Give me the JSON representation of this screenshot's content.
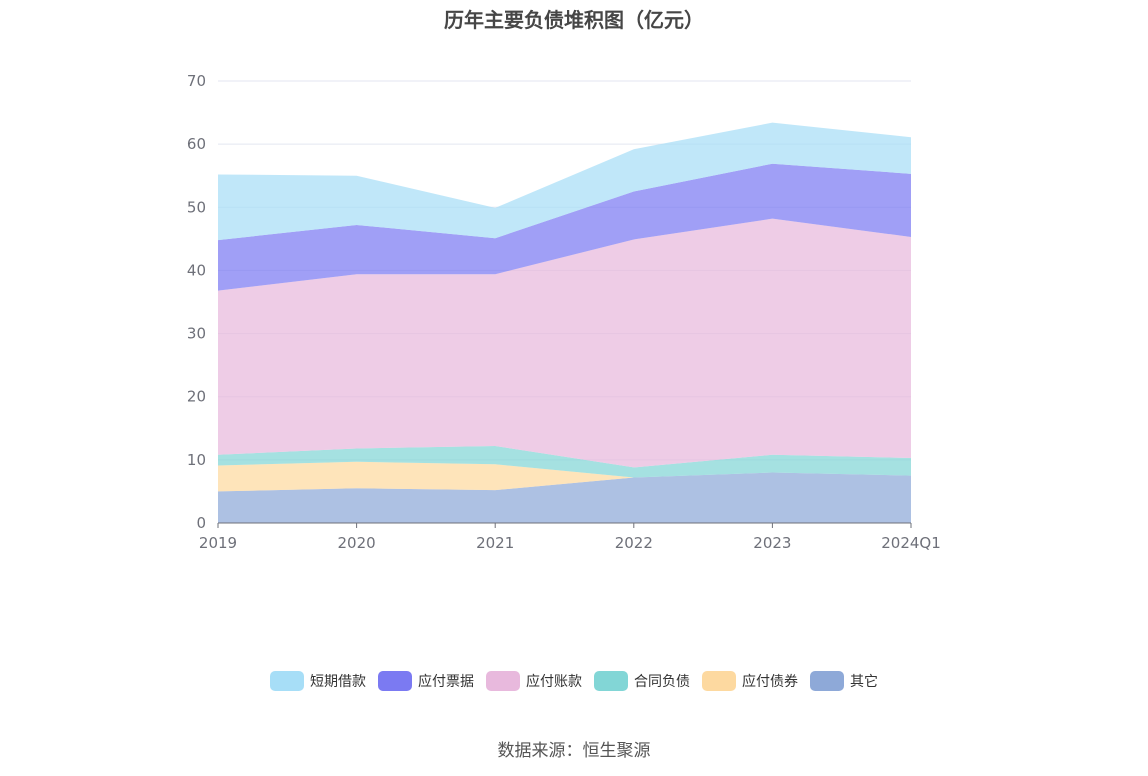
{
  "title": "历年主要负债堆积图（亿元）",
  "source": "数据来源：恒生聚源",
  "chart_data": {
    "type": "area",
    "stacked": true,
    "title": "历年主要负债堆积图（亿元）",
    "categories": [
      "2019",
      "2020",
      "2021",
      "2022",
      "2023",
      "2024Q1"
    ],
    "ylim": [
      0,
      70
    ],
    "yticks": [
      0,
      10,
      20,
      30,
      40,
      50,
      60,
      70
    ],
    "grid": true,
    "legend_position": "bottom",
    "series": [
      {
        "name": "其它",
        "color": "#8ea9d8",
        "values": [
          5.0,
          5.5,
          5.2,
          7.2,
          8.0,
          7.5
        ]
      },
      {
        "name": "应付债券",
        "color": "#fdd9a0",
        "values": [
          4.1,
          4.2,
          4.1,
          0.0,
          0.0,
          0.0
        ]
      },
      {
        "name": "合同负债",
        "color": "#82d6d6",
        "values": [
          1.7,
          2.1,
          2.9,
          1.6,
          2.8,
          2.8
        ]
      },
      {
        "name": "应付账款",
        "color": "#e8b9dd",
        "values": [
          26.0,
          27.6,
          27.2,
          36.1,
          37.4,
          35.0
        ]
      },
      {
        "name": "应付票据",
        "color": "#7b7af2",
        "values": [
          8.0,
          7.8,
          5.7,
          7.6,
          8.7,
          10.0
        ]
      },
      {
        "name": "短期借款",
        "color": "#a7def7",
        "values": [
          10.4,
          7.8,
          4.8,
          6.7,
          6.5,
          5.8
        ]
      }
    ],
    "legend_order": [
      "短期借款",
      "应付票据",
      "应付账款",
      "合同负债",
      "应付债券",
      "其它"
    ]
  }
}
